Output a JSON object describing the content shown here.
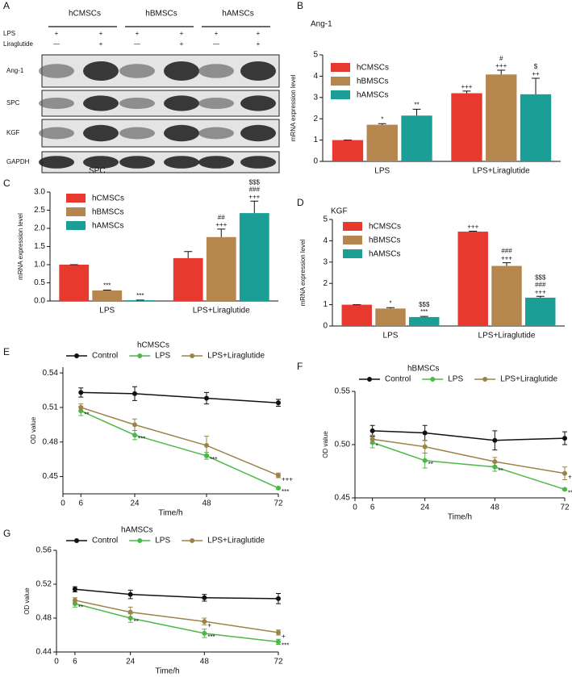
{
  "chart_data": [
    {
      "type": "blot",
      "label": "A",
      "groups": [
        "hCMSCs",
        "hBMSCs",
        "hAMSCs"
      ],
      "rows": [
        {
          "name": "LPS",
          "signs": [
            "+",
            "+",
            "+",
            "+",
            "+",
            "+"
          ]
        },
        {
          "name": "Liraglutide",
          "signs": [
            "—",
            "+",
            "—",
            "+",
            "—",
            "+"
          ]
        }
      ],
      "bands": [
        "Ang-1",
        "SPC",
        "KGF",
        "GAPDH"
      ]
    },
    {
      "type": "bar",
      "label": "B",
      "title": "Ang-1",
      "ylabel": "mRNA expression level",
      "categories": [
        "LPS",
        "LPS+Liraglutide"
      ],
      "ylim": [
        0,
        5
      ],
      "yticks": [
        0,
        1,
        2,
        3,
        4,
        5
      ],
      "series": [
        {
          "name": "hCMSCs",
          "color": "#e8392e",
          "values": [
            1,
            3.2
          ],
          "errors": [
            0,
            0.1
          ],
          "annotations": [
            null,
            [
              "+++"
            ]
          ]
        },
        {
          "name": "hBMSCs",
          "color": "#b5864e",
          "values": [
            1.72,
            4.08
          ],
          "errors": [
            0.05,
            0.2
          ],
          "annotations": [
            [
              "*"
            ],
            [
              "#",
              "+++"
            ]
          ]
        },
        {
          "name": "hAMSCs",
          "color": "#1a9e96",
          "values": [
            2.15,
            3.15
          ],
          "errors": [
            0.3,
            0.75
          ],
          "annotations": [
            [
              "**"
            ],
            [
              "$",
              "++"
            ]
          ]
        }
      ]
    },
    {
      "type": "bar",
      "label": "C",
      "title": "SPC",
      "ylabel": "mRNA expression level",
      "categories": [
        "LPS",
        "LPS+Liraglutide"
      ],
      "ylim": [
        0,
        3
      ],
      "yticks": [
        {
          "value": 0,
          "label": "0.0"
        },
        0.5,
        {
          "value": 1,
          "label": "1.0"
        },
        1.5,
        {
          "value": 2,
          "label": "2.0"
        },
        2.5,
        {
          "value": 3,
          "label": "3.0"
        }
      ],
      "series": [
        {
          "name": "hCMSCs",
          "color": "#e8392e",
          "values": [
            1,
            1.18
          ],
          "errors": [
            0,
            0.18
          ],
          "annotations": [
            null,
            null
          ]
        },
        {
          "name": "hBMSCs",
          "color": "#b5864e",
          "values": [
            0.29,
            1.76
          ],
          "errors": [
            0.01,
            0.22
          ],
          "annotations": [
            [
              "***"
            ],
            [
              "##",
              "+++"
            ]
          ]
        },
        {
          "name": "hAMSCs",
          "color": "#1a9e96",
          "values": [
            0.02,
            2.42
          ],
          "errors": [
            0.005,
            0.33
          ],
          "annotations": [
            [
              "***"
            ],
            [
              "$$$",
              "###",
              "+++"
            ]
          ]
        }
      ]
    },
    {
      "type": "bar",
      "label": "D",
      "title": "KGF",
      "ylabel": "mRNA expression level",
      "categories": [
        "LPS",
        "LPS+Liraglutide"
      ],
      "ylim": [
        0,
        5
      ],
      "yticks": [
        0,
        1,
        2,
        3,
        4,
        5
      ],
      "series": [
        {
          "name": "hCMSCs",
          "color": "#e8392e",
          "values": [
            1,
            4.43
          ],
          "errors": [
            0,
            0.02
          ],
          "annotations": [
            null,
            [
              "+++"
            ]
          ]
        },
        {
          "name": "hBMSCs",
          "color": "#b5864e",
          "values": [
            0.82,
            2.82
          ],
          "errors": [
            0.04,
            0.15
          ],
          "annotations": [
            [
              "*"
            ],
            [
              "###",
              "+++"
            ]
          ]
        },
        {
          "name": "hAMSCs",
          "color": "#1a9e96",
          "values": [
            0.42,
            1.33
          ],
          "errors": [
            0.03,
            0.06
          ],
          "annotations": [
            [
              "$$$",
              "***"
            ],
            [
              "$$$",
              "###",
              "+++"
            ]
          ]
        }
      ]
    },
    {
      "type": "line",
      "label": "E",
      "title": "hCMSCs",
      "xlabel": "Time/h",
      "ylabel": "OD value",
      "x": [
        6,
        24,
        48,
        72
      ],
      "xlim": [
        0,
        72
      ],
      "xticks": [
        0,
        6,
        24,
        48,
        72
      ],
      "ylim": [
        0.435,
        0.545
      ],
      "yticks": [
        0.45,
        0.48,
        0.51,
        0.54
      ],
      "series": [
        {
          "name": "Control",
          "color": "#111111",
          "values": [
            0.523,
            0.522,
            0.518,
            0.514
          ],
          "errors": [
            0.004,
            0.006,
            0.005,
            0.003
          ],
          "point_labels": [
            null,
            null,
            null,
            null
          ]
        },
        {
          "name": "LPS",
          "color": "#4cb848",
          "values": [
            0.507,
            0.486,
            0.468,
            0.44
          ],
          "errors": [
            0.004,
            0.004,
            0.003,
            0.001
          ],
          "point_labels": [
            "**",
            "***",
            "***",
            "***"
          ]
        },
        {
          "name": "LPS+Liraglutide",
          "color": "#9b8448",
          "values": [
            0.51,
            0.495,
            0.477,
            0.451
          ],
          "errors": [
            0.003,
            0.005,
            0.008,
            0.002
          ],
          "point_labels": [
            null,
            null,
            null,
            "+++"
          ]
        }
      ]
    },
    {
      "type": "line",
      "label": "F",
      "title": "hBMSCs",
      "xlabel": "Time/h",
      "ylabel": "OD value",
      "x": [
        6,
        24,
        48,
        72
      ],
      "xlim": [
        0,
        72
      ],
      "xticks": [
        0,
        6,
        24,
        48,
        72
      ],
      "ylim": [
        0.45,
        0.55
      ],
      "yticks": [
        0.45,
        {
          "value": 0.5,
          "label": "0.50"
        },
        0.55
      ],
      "series": [
        {
          "name": "Control",
          "color": "#111111",
          "values": [
            0.513,
            0.511,
            0.504,
            0.506
          ],
          "errors": [
            0.005,
            0.007,
            0.009,
            0.006
          ],
          "point_labels": [
            null,
            null,
            null,
            null
          ]
        },
        {
          "name": "LPS",
          "color": "#4cb848",
          "values": [
            0.502,
            0.485,
            0.479,
            0.458
          ],
          "errors": [
            0.005,
            0.007,
            0.004,
            0.001
          ],
          "point_labels": [
            "*",
            "**",
            "**",
            "**"
          ]
        },
        {
          "name": "LPS+Liraglutide",
          "color": "#9b8448",
          "values": [
            0.505,
            0.498,
            0.484,
            0.473
          ],
          "errors": [
            0.004,
            0.006,
            0.004,
            0.006
          ],
          "point_labels": [
            null,
            null,
            null,
            "+"
          ]
        }
      ]
    },
    {
      "type": "line",
      "label": "G",
      "title": "hAMSCs",
      "xlabel": "Time/h",
      "ylabel": "OD value",
      "x": [
        6,
        24,
        48,
        72
      ],
      "xlim": [
        0,
        72
      ],
      "xticks": [
        0,
        6,
        24,
        48,
        72
      ],
      "ylim": [
        0.44,
        0.56
      ],
      "yticks": [
        0.44,
        0.48,
        0.52,
        0.56
      ],
      "series": [
        {
          "name": "Control",
          "color": "#111111",
          "values": [
            0.514,
            0.508,
            0.504,
            0.503
          ],
          "errors": [
            0.003,
            0.005,
            0.004,
            0.006
          ],
          "point_labels": [
            null,
            null,
            null,
            null
          ]
        },
        {
          "name": "LPS",
          "color": "#4cb848",
          "values": [
            0.497,
            0.48,
            0.462,
            0.452
          ],
          "errors": [
            0.004,
            0.005,
            0.005,
            0.003
          ],
          "point_labels": [
            "**",
            "**",
            "***",
            "***"
          ]
        },
        {
          "name": "LPS+Liraglutide",
          "color": "#9b8448",
          "values": [
            0.501,
            0.487,
            0.476,
            0.463
          ],
          "errors": [
            0.003,
            0.006,
            0.004,
            0.003
          ],
          "point_labels": [
            null,
            null,
            "+",
            "+"
          ]
        }
      ]
    }
  ]
}
